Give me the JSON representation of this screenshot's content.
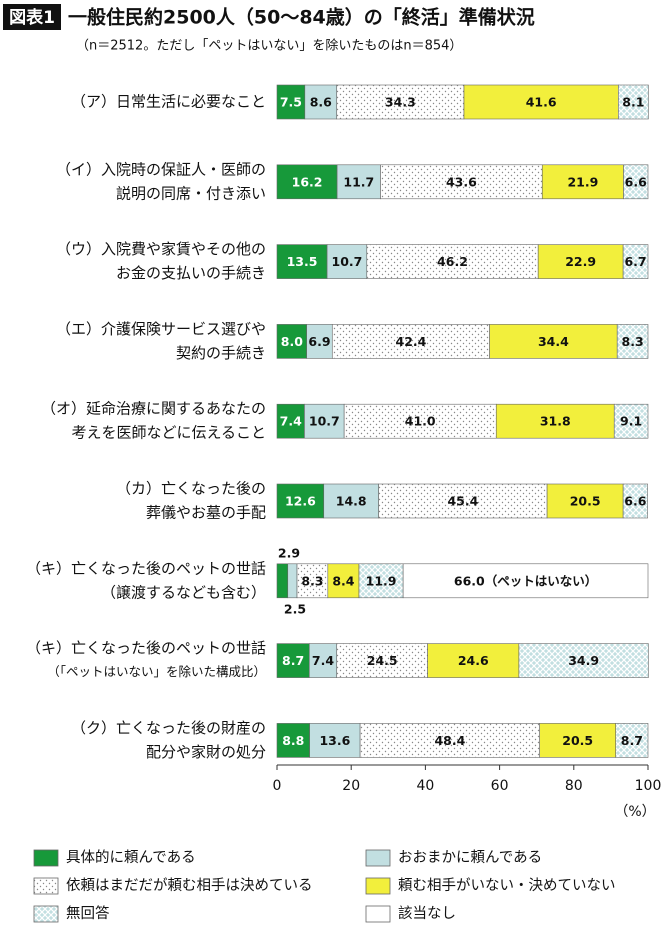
{
  "chart_data": {
    "type": "stacked-bar-horizontal",
    "badge": "図表1",
    "title": "一般住民約2500人（50〜84歳）の「終活」準備状況",
    "subtitle": "（n＝2512。ただし「ペットはいない」を除いたものはn＝854）",
    "categories": [
      [
        "（ア）日常生活に必要なこと"
      ],
      [
        "（イ）入院時の保証人・医師の",
        "説明の同席・付き添い"
      ],
      [
        "（ウ）入院費や家賃やその他の",
        "お金の支払いの手続き"
      ],
      [
        "（エ）介護保険サービス選びや",
        "契約の手続き"
      ],
      [
        "（オ）延命治療に関するあなたの",
        "考えを医師などに伝えること"
      ],
      [
        "（カ）亡くなった後の",
        "葬儀やお墓の手配"
      ],
      [
        "（キ）亡くなった後のペットの世話",
        "（譲渡するなども含む）"
      ],
      [
        "（キ）亡くなった後のペットの世話",
        "（「ペットはいない」を除いた構成比）"
      ],
      [
        "（ク）亡くなった後の財産の",
        "配分や家財の処分"
      ]
    ],
    "series": [
      {
        "name": "具体的に頼んである",
        "color": "#17993a",
        "text_color": "#ffffff",
        "values": [
          7.5,
          16.2,
          13.5,
          8.0,
          7.4,
          12.6,
          2.9,
          8.7,
          8.8
        ],
        "value_labels": [
          "7.5",
          "16.2",
          "13.5",
          "8.0",
          "7.4",
          "12.6",
          "2.9",
          "8.7",
          "8.8"
        ]
      },
      {
        "name": "おおまかに頼んである",
        "color": "#c2dfe1",
        "text_color": "#111111",
        "values": [
          8.6,
          11.7,
          10.7,
          6.9,
          10.7,
          14.8,
          2.5,
          7.4,
          13.6
        ],
        "value_labels": [
          "8.6",
          "11.7",
          "10.7",
          "6.9",
          "10.7",
          "14.8",
          "2.5",
          "7.4",
          "13.6"
        ]
      },
      {
        "name": "依頼はまだだが頼む相手は決めている",
        "color": "#ffffff",
        "pattern": "dots",
        "text_color": "#111111",
        "values": [
          34.3,
          43.6,
          46.2,
          42.4,
          41.0,
          45.4,
          8.3,
          24.5,
          48.4
        ],
        "value_labels": [
          "34.3",
          "43.6",
          "46.2",
          "42.4",
          "41.0",
          "45.4",
          "8.3",
          "24.5",
          "48.4"
        ]
      },
      {
        "name": "頼む相手がいない・決めていない",
        "color": "#f2ef3c",
        "text_color": "#111111",
        "values": [
          41.6,
          21.9,
          22.9,
          34.4,
          31.8,
          20.5,
          8.4,
          24.6,
          20.5
        ],
        "value_labels": [
          "41.6",
          "21.9",
          "22.9",
          "34.4",
          "31.8",
          "20.5",
          "8.4",
          "24.6",
          "20.5"
        ]
      },
      {
        "name": "無回答",
        "color": "#c2dfe1",
        "pattern": "crosshatch",
        "text_color": "#111111",
        "values": [
          8.1,
          6.6,
          6.7,
          8.3,
          9.1,
          6.6,
          11.9,
          34.9,
          8.7
        ],
        "value_labels": [
          "8.1",
          "6.6",
          "6.7",
          "8.3",
          "9.1",
          "6.6",
          "11.9",
          "34.9",
          "8.7"
        ]
      },
      {
        "name": "該当なし",
        "color": "#ffffff",
        "text_color": "#111111",
        "values": [
          null,
          null,
          null,
          null,
          null,
          null,
          66.0,
          null,
          null
        ],
        "value_labels": [
          null,
          null,
          null,
          null,
          null,
          null,
          "66.0（ペットはいない）",
          null,
          null
        ]
      }
    ],
    "xlim": [
      0,
      100
    ],
    "xticks": [
      0,
      20,
      40,
      60,
      80,
      100
    ],
    "x_unit": "（%）"
  }
}
